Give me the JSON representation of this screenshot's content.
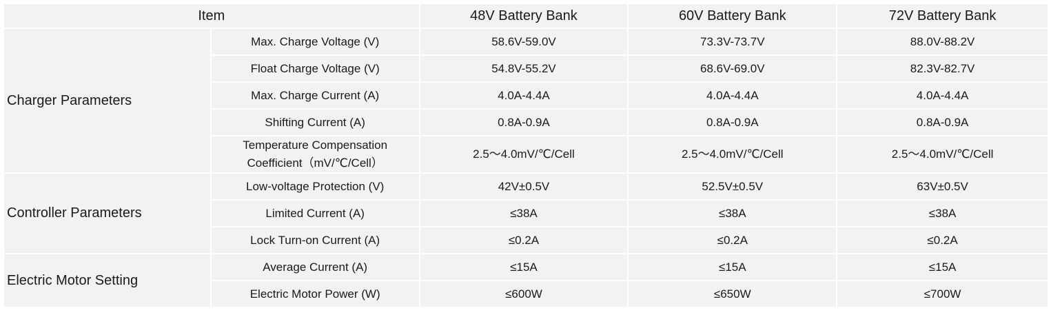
{
  "header": {
    "item": "Item",
    "columns": [
      "48V Battery Bank",
      "60V Battery Bank",
      "72V Battery Bank"
    ]
  },
  "groups": [
    {
      "label": "Charger Parameters",
      "rows": [
        {
          "param": "Max. Charge Voltage (V)",
          "values": [
            "58.6V-59.0V",
            "73.3V-73.7V",
            "88.0V-88.2V"
          ]
        },
        {
          "param": "Float Charge Voltage (V)",
          "values": [
            "54.8V-55.2V",
            "68.6V-69.0V",
            "82.3V-82.7V"
          ]
        },
        {
          "param": "Max. Charge Current (A)",
          "values": [
            "4.0A-4.4A",
            "4.0A-4.4A",
            "4.0A-4.4A"
          ]
        },
        {
          "param": "Shifting Current (A)",
          "values": [
            "0.8A-0.9A",
            "0.8A-0.9A",
            "0.8A-0.9A"
          ]
        },
        {
          "param_lines": [
            "Temperature Compensation",
            "Coefficient（mV/℃/Cell）"
          ],
          "values": [
            "2.5～4.0mV/℃/Cell",
            "2.5～4.0mV/℃/Cell",
            "2.5～4.0mV/℃/Cell"
          ]
        }
      ]
    },
    {
      "label": "Controller Parameters",
      "rows": [
        {
          "param": "Low-voltage Protection (V)",
          "values": [
            "42V±0.5V",
            "52.5V±0.5V",
            "63V±0.5V"
          ]
        },
        {
          "param": "Limited Current  (A)",
          "values": [
            "≤38A",
            "≤38A",
            "≤38A"
          ]
        },
        {
          "param": "Lock Turn-on Current (A)",
          "values": [
            "≤0.2A",
            "≤0.2A",
            "≤0.2A"
          ]
        }
      ]
    },
    {
      "label": "Electric Motor Setting",
      "rows": [
        {
          "param": "Average Current (A)",
          "values": [
            "≤15A",
            "≤15A",
            "≤15A"
          ]
        },
        {
          "param": "Electric Motor Power (W)",
          "values": [
            "≤600W",
            "≤650W",
            "≤700W"
          ]
        }
      ]
    }
  ]
}
